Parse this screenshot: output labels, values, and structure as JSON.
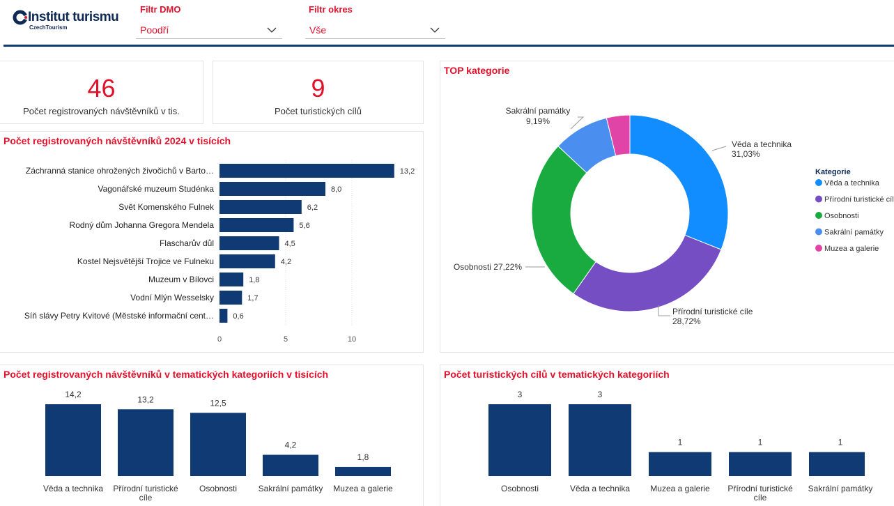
{
  "header": {
    "logo_title": "Institut turismu",
    "logo_subtitle": "CzechTourism"
  },
  "filters": [
    {
      "label": "Filtr DMO",
      "value": "Poodří"
    },
    {
      "label": "Filtr okres",
      "value": "Vše"
    }
  ],
  "kpis": [
    {
      "value": "46",
      "label": "Počet registrovaných návštěvníků v tis."
    },
    {
      "value": "9",
      "label": "Počet turistických cílů"
    }
  ],
  "chart_data": [
    {
      "type": "hbar",
      "title": "Počet registrovaných návštěvníků 2024 v tisících",
      "color": "#0f3a73",
      "categories": [
        "Záchranná stanice ohrožených živočichů v Barto…",
        "Vagonářské muzeum Studénka",
        "Svět Komenského Fulnek",
        "Rodný dům Johanna Gregora Mendela",
        "Flascharův důl",
        "Kostel Nejsvětější Trojice ve Fulneku",
        "Muzeum v Bílovci",
        "Vodní Mlýn Wesselsky",
        "Síň slávy Petry Kvitové (Městské informační cent…"
      ],
      "values": [
        13.2,
        8.0,
        6.2,
        5.6,
        4.5,
        4.2,
        1.8,
        1.7,
        0.6
      ],
      "value_labels": [
        "13,2",
        "8,0",
        "6,2",
        "5,6",
        "4,5",
        "4,2",
        "1,8",
        "1,7",
        "0,6"
      ],
      "xlim": [
        0,
        14
      ],
      "xticks": [
        0,
        5,
        10
      ],
      "grid": true
    },
    {
      "type": "donut",
      "title": "TOP kategorie",
      "legend_title": "Kategorie",
      "categories": [
        "Věda a technika",
        "Přírodní turistické cíle",
        "Osobnosti",
        "Sakrální památky",
        "Muzea a galerie"
      ],
      "values": [
        31.03,
        28.72,
        27.22,
        9.19,
        3.84
      ],
      "value_labels": [
        "31,03%",
        "28,72%",
        "27,22%",
        "9,19%",
        null
      ],
      "colors": [
        "#118dff",
        "#744ec2",
        "#1aab40",
        "#4a8ff0",
        "#e044a7"
      ]
    },
    {
      "type": "bar",
      "title": "Počet registrovaných návštěvníků v tematických kategoriích v tisících",
      "color": "#0f3a73",
      "categories": [
        "Věda a technika",
        "Přírodní turistické cíle",
        "Osobnosti",
        "Sakrální památky",
        "Muzea a galerie"
      ],
      "values": [
        14.2,
        13.2,
        12.5,
        4.2,
        1.8
      ],
      "value_labels": [
        "14,2",
        "13,2",
        "12,5",
        "4,2",
        "1,8"
      ]
    },
    {
      "type": "bar",
      "title": "Počet turistických cílů v tematických kategoriích",
      "color": "#0f3a73",
      "categories": [
        "Osobnosti",
        "Věda a technika",
        "Muzea a galerie",
        "Přírodní turistické cíle",
        "Sakrální památky"
      ],
      "values": [
        3,
        3,
        1,
        1,
        1
      ]
    }
  ]
}
